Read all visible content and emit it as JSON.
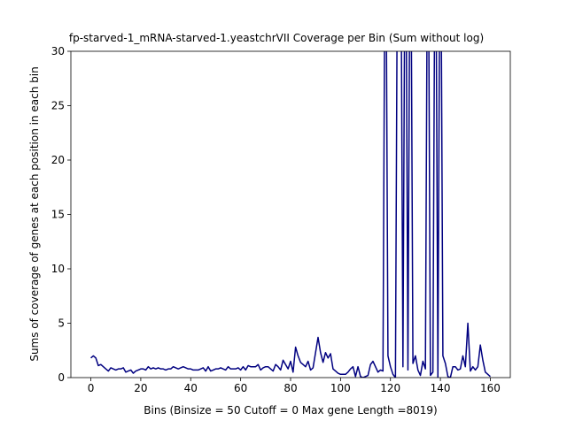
{
  "chart_data": {
    "type": "line",
    "title": "fp-starved-1_mRNA-starved-1.yeastchrVII Coverage per Bin (Sum without log)",
    "x_label": "Bins  (Binsize = 50 Cutoff = 0 Max gene Length =8019)",
    "y_label": "Sums of coverage of genes at each position in each bin",
    "x": [
      0,
      1,
      2,
      3,
      4,
      5,
      6,
      7,
      8,
      9,
      10,
      11,
      12,
      13,
      14,
      15,
      16,
      17,
      18,
      19,
      20,
      21,
      22,
      23,
      24,
      25,
      26,
      27,
      28,
      29,
      30,
      31,
      32,
      33,
      34,
      35,
      36,
      37,
      38,
      39,
      40,
      41,
      42,
      43,
      44,
      45,
      46,
      47,
      48,
      49,
      50,
      51,
      52,
      53,
      54,
      55,
      56,
      57,
      58,
      59,
      60,
      61,
      62,
      63,
      64,
      65,
      66,
      67,
      68,
      69,
      70,
      71,
      72,
      73,
      74,
      75,
      76,
      77,
      78,
      79,
      80,
      81,
      82,
      83,
      84,
      85,
      86,
      87,
      88,
      89,
      90,
      91,
      92,
      93,
      94,
      95,
      96,
      97,
      98,
      99,
      100,
      101,
      102,
      103,
      104,
      105,
      106,
      107,
      108,
      109,
      110,
      111,
      112,
      113,
      114,
      115,
      116,
      117,
      118,
      119,
      120,
      121,
      122,
      123,
      124,
      125,
      126,
      127,
      128,
      129,
      130,
      131,
      132,
      133,
      134,
      135,
      136,
      137,
      138,
      139,
      140,
      141,
      142,
      143,
      144,
      145,
      146,
      147,
      148,
      149,
      150,
      151,
      152,
      153,
      154,
      155,
      156,
      157,
      158,
      159,
      160
    ],
    "series": [
      {
        "color": "#000080",
        "values": [
          1.8,
          2.0,
          1.8,
          1.1,
          1.2,
          1.0,
          0.8,
          0.6,
          0.9,
          0.8,
          0.7,
          0.8,
          0.8,
          0.9,
          0.5,
          0.6,
          0.7,
          0.4,
          0.6,
          0.7,
          0.8,
          0.8,
          0.7,
          1.0,
          0.8,
          0.9,
          0.8,
          0.9,
          0.8,
          0.8,
          0.7,
          0.8,
          0.8,
          1.0,
          0.9,
          0.8,
          0.9,
          1.0,
          0.9,
          0.8,
          0.8,
          0.7,
          0.7,
          0.7,
          0.8,
          0.9,
          0.6,
          1.0,
          0.6,
          0.7,
          0.8,
          0.8,
          0.9,
          0.8,
          0.7,
          1.0,
          0.8,
          0.8,
          0.8,
          0.9,
          0.7,
          1.0,
          0.7,
          1.1,
          1.0,
          1.0,
          1.0,
          1.2,
          0.7,
          0.9,
          1.0,
          1.0,
          0.8,
          0.6,
          1.2,
          1.0,
          0.7,
          1.6,
          1.2,
          0.8,
          1.5,
          0.5,
          2.8,
          2.0,
          1.4,
          1.2,
          1.0,
          1.5,
          0.7,
          0.9,
          2.3,
          3.7,
          2.3,
          1.4,
          2.3,
          1.8,
          2.2,
          0.8,
          0.6,
          0.4,
          0.3,
          0.3,
          0.3,
          0.5,
          0.8,
          1.0,
          0.1,
          1.0,
          0.1,
          0.0,
          0.1,
          0.2,
          1.2,
          1.5,
          1.0,
          0.5,
          0.7,
          0.6,
          50,
          2.0,
          1.0,
          0.3,
          0.0,
          50,
          50,
          1.0,
          50,
          0.7,
          50,
          1.3,
          2.0,
          0.7,
          0.2,
          1.5,
          0.8,
          50,
          0.2,
          0.5,
          50,
          0.0,
          50,
          2.0,
          1.3,
          0.1,
          0.0,
          1.0,
          1.0,
          0.7,
          0.8,
          2.0,
          1.0,
          5.0,
          0.6,
          1.0,
          0.7,
          1.0,
          3.0,
          1.6,
          0.5,
          0.3,
          0.1
        ]
      }
    ],
    "xlim": [
      -8,
      168
    ],
    "ylim": [
      0,
      30
    ],
    "xticks": [
      0,
      20,
      40,
      60,
      80,
      100,
      120,
      140,
      160
    ],
    "yticks": [
      0,
      5,
      10,
      15,
      20,
      25,
      30
    ]
  }
}
